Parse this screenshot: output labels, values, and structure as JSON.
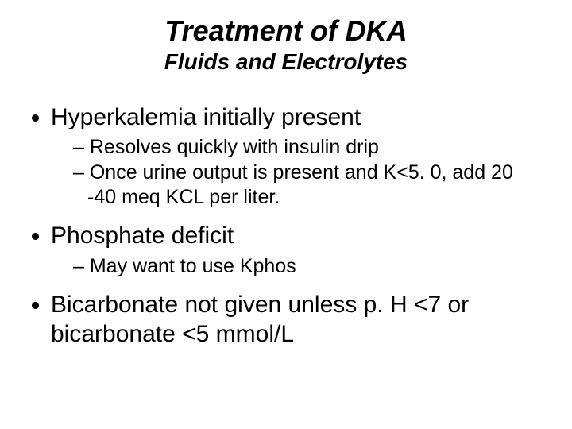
{
  "background_color": "#ffffff",
  "text_color": "#000000",
  "font_family": "Arial, Helvetica, sans-serif",
  "title": {
    "text": "Treatment of DKA",
    "fontsize": 36,
    "bold": true,
    "italic": true,
    "align": "center"
  },
  "subtitle": {
    "text": "Fluids and Electrolytes",
    "fontsize": 28,
    "bold": true,
    "italic": true,
    "align": "center"
  },
  "bullets": {
    "level1_fontsize": 30,
    "level2_fontsize": 25,
    "level1_marker": "disc",
    "level2_marker": "–",
    "items": [
      {
        "text": "Hyperkalemia initially present",
        "sub": [
          "Resolves quickly with insulin drip",
          "Once urine output is present and K<5. 0, add 20 -40 meq KCL per liter."
        ]
      },
      {
        "text": "Phosphate deficit",
        "sub": [
          "May want to use Kphos"
        ]
      },
      {
        "text": "Bicarbonate not given unless p. H <7 or bicarbonate <5 mmol/L",
        "sub": []
      }
    ]
  }
}
